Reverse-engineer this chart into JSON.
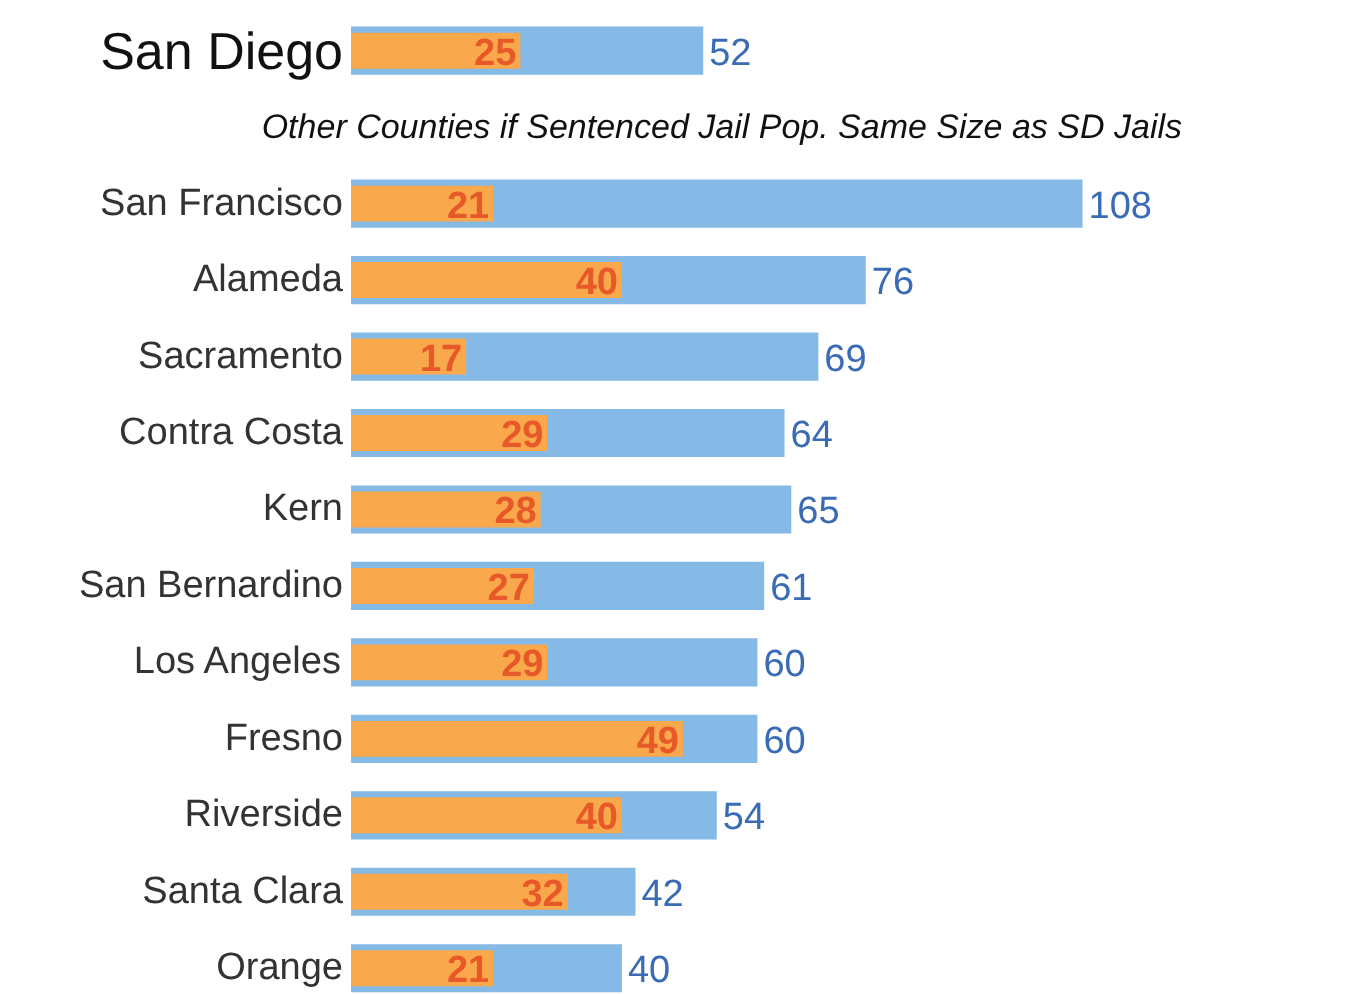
{
  "chart_data": {
    "type": "bar",
    "orientation": "horizontal",
    "data_labels": true,
    "xlim": [
      0,
      150
    ],
    "categories": [
      "San Diego",
      null,
      "San Francisco",
      "Alameda",
      "Sacramento",
      "Contra Costa",
      "Kern",
      "San Bernardino",
      "Los Angeles",
      "Fresno",
      "Riverside",
      "Santa Clara",
      "Orange"
    ],
    "series": [
      {
        "color": "#85b9e6",
        "values": [
          52,
          null,
          108,
          76,
          69,
          64,
          65,
          61,
          60,
          60,
          54,
          42,
          40
        ]
      },
      {
        "color": "#f9a94b",
        "values": [
          25,
          null,
          21,
          40,
          17,
          29,
          28,
          27,
          29,
          49,
          40,
          32,
          21
        ]
      }
    ],
    "annotations": [
      "Other Counties if Sentenced Jail Pop. Same Size as SD Jails"
    ]
  }
}
